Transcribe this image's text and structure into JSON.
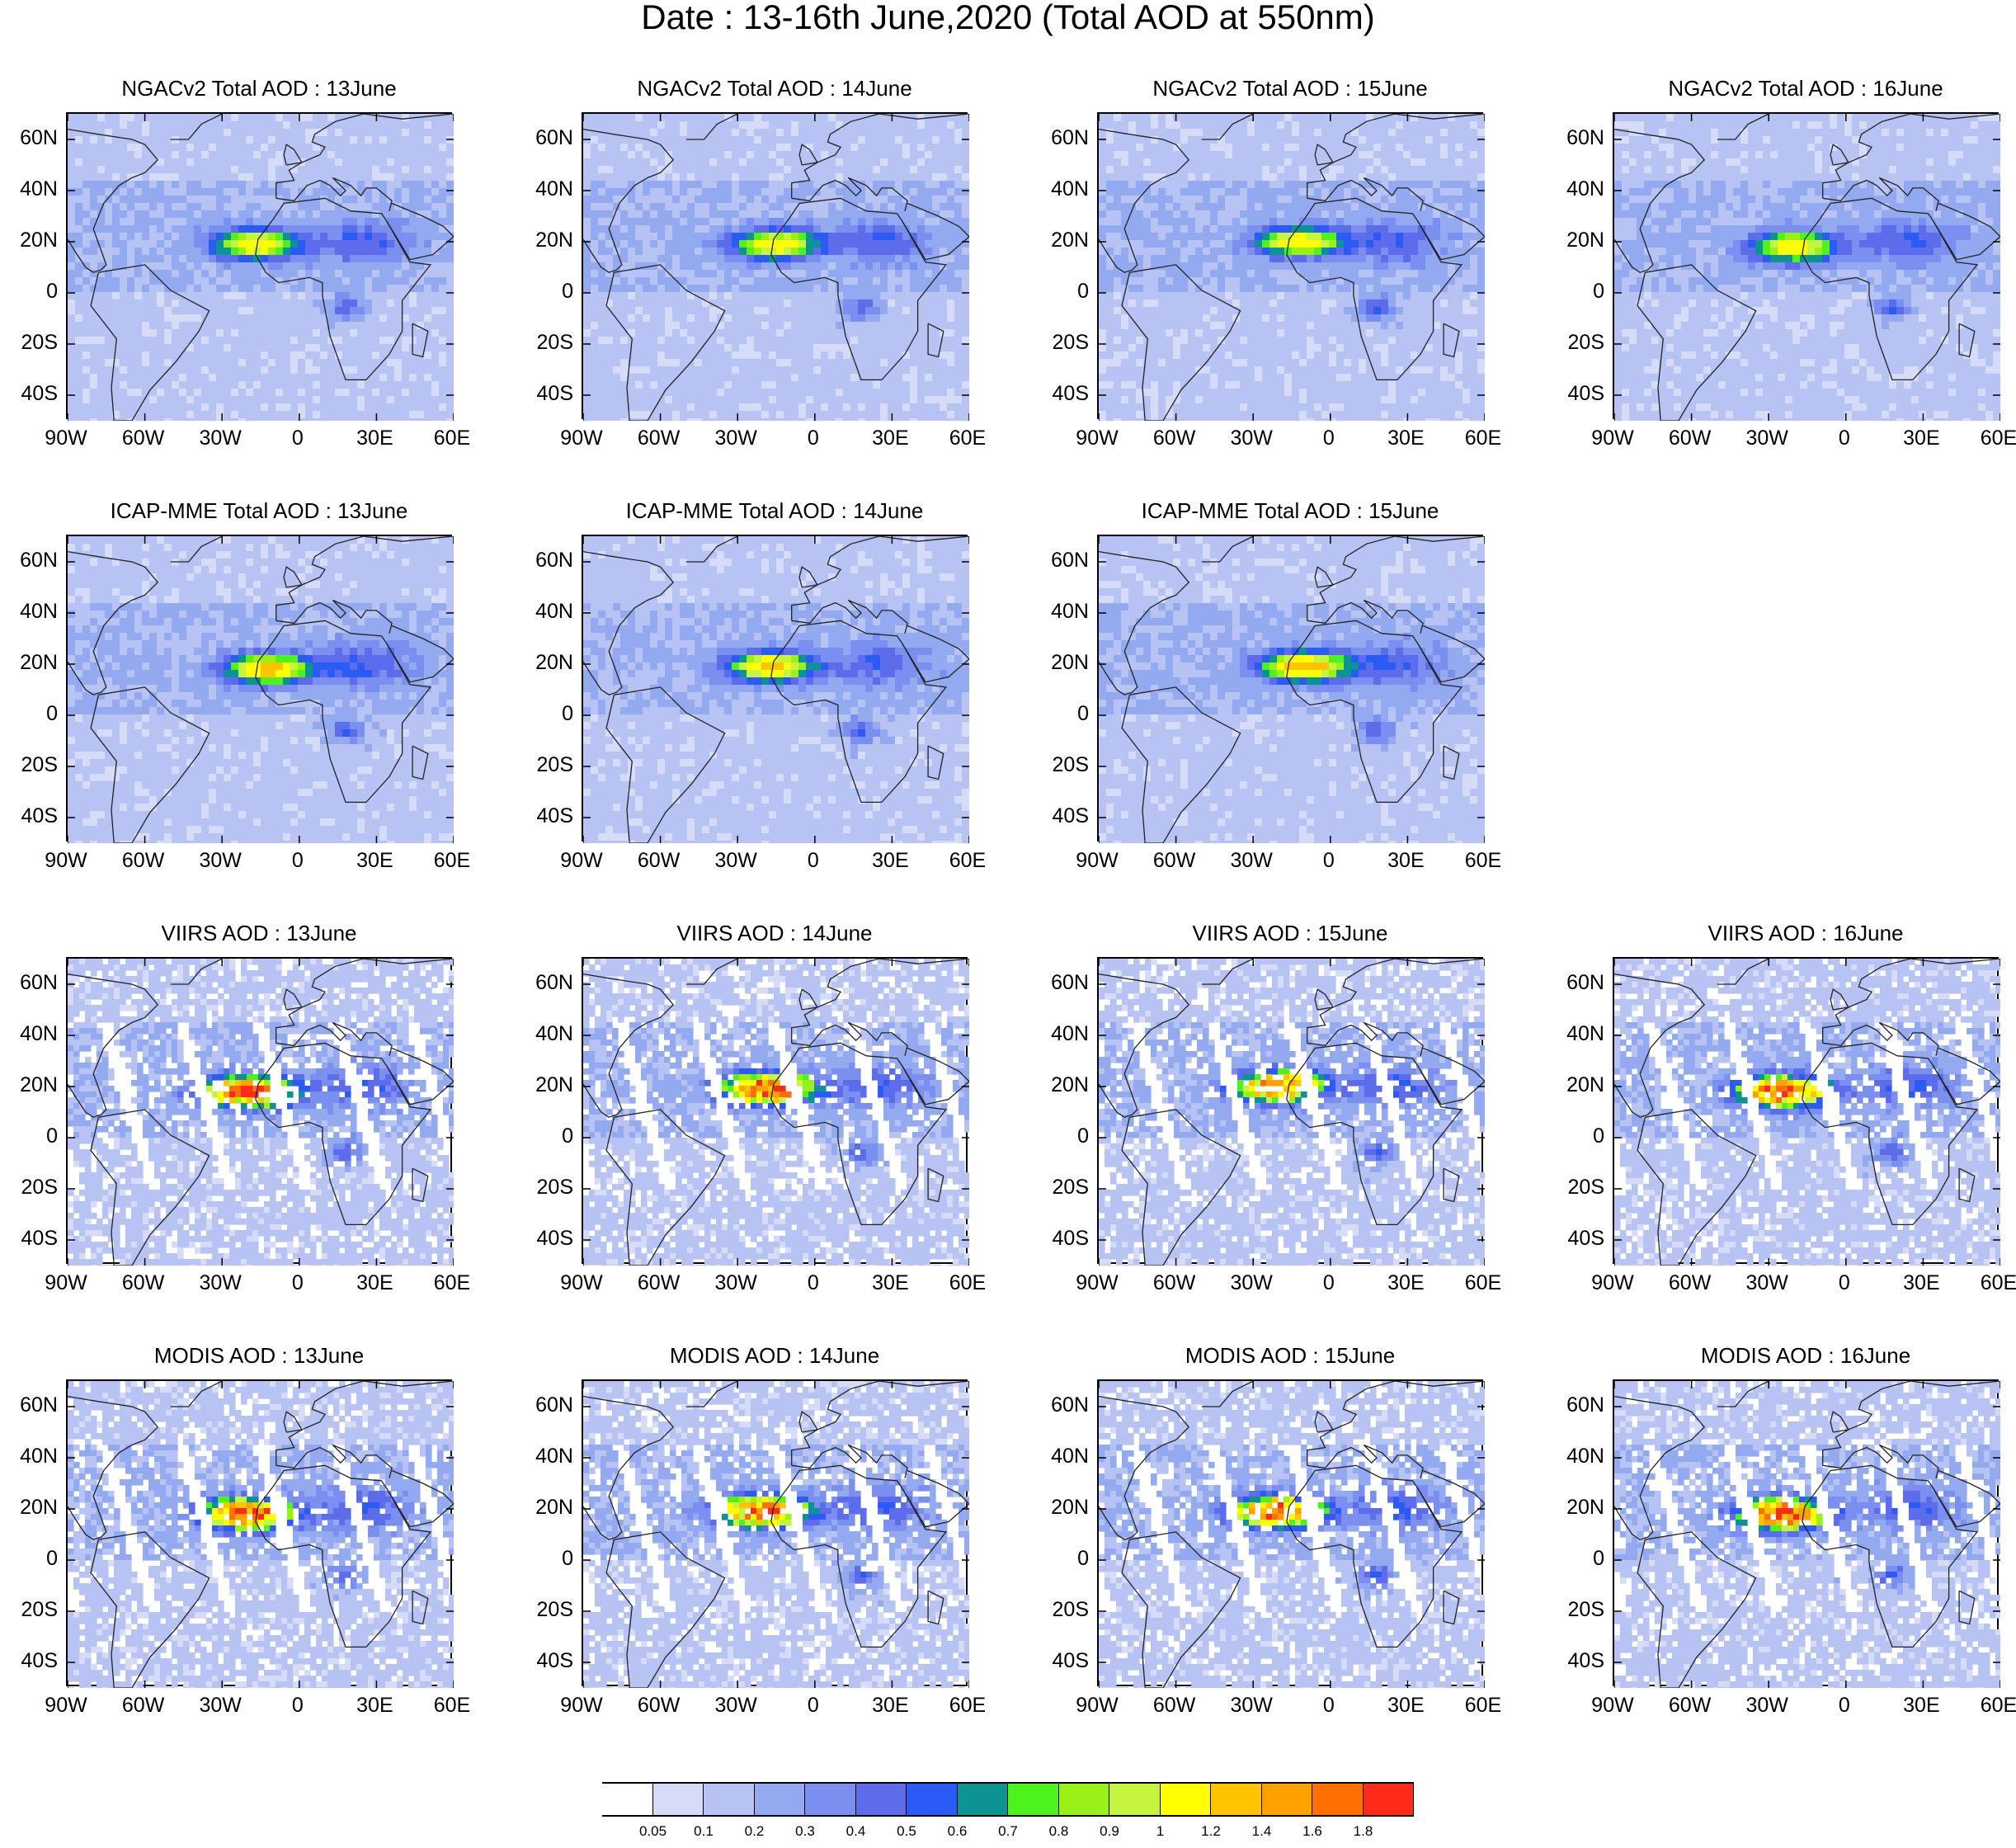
{
  "title": "Date : 13-16th June,2020 (Total AOD at 550nm)",
  "axes": {
    "lat_labels": [
      "60N",
      "40N",
      "20N",
      "0",
      "20S",
      "40S"
    ],
    "lon_labels": [
      "90W",
      "60W",
      "30W",
      "0",
      "30E",
      "60E"
    ],
    "lat_values": [
      60,
      40,
      20,
      0,
      -20,
      -40
    ],
    "lon_values": [
      -90,
      -60,
      -30,
      0,
      30,
      60
    ],
    "lon_range": [
      -90,
      60
    ],
    "lat_range": [
      -50,
      70
    ]
  },
  "rows": [
    {
      "panels": [
        {
          "title": "NGACv2 Total AOD : 13June",
          "kind": "model",
          "plume_lon": -17,
          "plume_lat": 19,
          "peak": 1.0
        },
        {
          "title": "NGACv2 Total AOD : 14June",
          "kind": "model",
          "plume_lon": -15,
          "plume_lat": 19,
          "peak": 1.0
        },
        {
          "title": "NGACv2 Total AOD : 15June",
          "kind": "model",
          "plume_lon": -12,
          "plume_lat": 20,
          "peak": 1.0
        },
        {
          "title": "NGACv2 Total AOD : 16June",
          "kind": "model",
          "plume_lon": -20,
          "plume_lat": 18,
          "peak": 1.0
        }
      ]
    },
    {
      "panels": [
        {
          "title": "ICAP-MME Total AOD : 13June",
          "kind": "model",
          "plume_lon": -12,
          "plume_lat": 18,
          "peak": 1.1
        },
        {
          "title": "ICAP-MME Total AOD : 14June",
          "kind": "model",
          "plume_lon": -17,
          "plume_lat": 19,
          "peak": 1.1
        },
        {
          "title": "ICAP-MME Total AOD : 15June",
          "kind": "model",
          "plume_lon": -10,
          "plume_lat": 19,
          "peak": 1.2
        },
        null
      ]
    },
    {
      "panels": [
        {
          "title": "VIIRS AOD : 13June",
          "kind": "sat",
          "plume_lon": -20,
          "plume_lat": 18,
          "peak": 1.8
        },
        {
          "title": "VIIRS AOD : 14June",
          "kind": "sat",
          "plume_lon": -18,
          "plume_lat": 19,
          "peak": 1.8
        },
        {
          "title": "VIIRS AOD : 15June",
          "kind": "sat",
          "plume_lon": -20,
          "plume_lat": 20,
          "peak": 1.6
        },
        {
          "title": "VIIRS AOD : 16June",
          "kind": "sat",
          "plume_lon": -25,
          "plume_lat": 18,
          "peak": 1.8
        }
      ]
    },
    {
      "panels": [
        {
          "title": "MODIS AOD : 13June",
          "kind": "sat",
          "plume_lon": -20,
          "plume_lat": 18,
          "peak": 1.8
        },
        {
          "title": "MODIS AOD : 14June",
          "kind": "sat",
          "plume_lon": -20,
          "plume_lat": 19,
          "peak": 1.8
        },
        {
          "title": "MODIS AOD : 15June",
          "kind": "sat",
          "plume_lon": -20,
          "plume_lat": 19,
          "peak": 1.8
        },
        {
          "title": "MODIS AOD : 16June",
          "kind": "sat",
          "plume_lon": -25,
          "plume_lat": 18,
          "peak": 1.8
        }
      ]
    }
  ],
  "colorbar": {
    "levels": [
      "0.05",
      "0.1",
      "0.2",
      "0.3",
      "0.4",
      "0.5",
      "0.6",
      "0.7",
      "0.8",
      "0.9",
      "1",
      "1.2",
      "1.4",
      "1.6",
      "1.8"
    ],
    "colors": [
      "#ffffff",
      "#d6dcf7",
      "#b6c3f3",
      "#94aaf0",
      "#7a8ff0",
      "#5c6cea",
      "#2b5bf5",
      "#0b9493",
      "#4ef21c",
      "#98f218",
      "#c6f540",
      "#ffff00",
      "#ffc400",
      "#ffa200",
      "#ff7000",
      "#ff2a1a"
    ]
  },
  "chart_data": [
    {
      "type": "heatmap",
      "title": "NGACv2 Total AOD : 13June",
      "variable": "Total AOD at 550nm",
      "xlim": [
        -90,
        60
      ],
      "ylim": [
        -50,
        70
      ],
      "max_value": 1.0
    },
    {
      "type": "heatmap",
      "title": "NGACv2 Total AOD : 14June",
      "variable": "Total AOD at 550nm",
      "xlim": [
        -90,
        60
      ],
      "ylim": [
        -50,
        70
      ],
      "max_value": 1.0
    },
    {
      "type": "heatmap",
      "title": "NGACv2 Total AOD : 15June",
      "variable": "Total AOD at 550nm",
      "xlim": [
        -90,
        60
      ],
      "ylim": [
        -50,
        70
      ],
      "max_value": 1.0
    },
    {
      "type": "heatmap",
      "title": "NGACv2 Total AOD : 16June",
      "variable": "Total AOD at 550nm",
      "xlim": [
        -90,
        60
      ],
      "ylim": [
        -50,
        70
      ],
      "max_value": 1.0
    },
    {
      "type": "heatmap",
      "title": "ICAP-MME Total AOD : 13June",
      "variable": "Total AOD at 550nm",
      "xlim": [
        -90,
        60
      ],
      "ylim": [
        -50,
        70
      ],
      "max_value": 1.1
    },
    {
      "type": "heatmap",
      "title": "ICAP-MME Total AOD : 14June",
      "variable": "Total AOD at 550nm",
      "xlim": [
        -90,
        60
      ],
      "ylim": [
        -50,
        70
      ],
      "max_value": 1.1
    },
    {
      "type": "heatmap",
      "title": "ICAP-MME Total AOD : 15June",
      "variable": "Total AOD at 550nm",
      "xlim": [
        -90,
        60
      ],
      "ylim": [
        -50,
        70
      ],
      "max_value": 1.2
    },
    {
      "type": "heatmap",
      "title": "VIIRS AOD : 13June",
      "variable": "AOD",
      "xlim": [
        -90,
        60
      ],
      "ylim": [
        -50,
        70
      ],
      "max_value": 1.8
    },
    {
      "type": "heatmap",
      "title": "VIIRS AOD : 14June",
      "variable": "AOD",
      "xlim": [
        -90,
        60
      ],
      "ylim": [
        -50,
        70
      ],
      "max_value": 1.8
    },
    {
      "type": "heatmap",
      "title": "VIIRS AOD : 15June",
      "variable": "AOD",
      "xlim": [
        -90,
        60
      ],
      "ylim": [
        -50,
        70
      ],
      "max_value": 1.6
    },
    {
      "type": "heatmap",
      "title": "VIIRS AOD : 16June",
      "variable": "AOD",
      "xlim": [
        -90,
        60
      ],
      "ylim": [
        -50,
        70
      ],
      "max_value": 1.8
    },
    {
      "type": "heatmap",
      "title": "MODIS AOD : 13June",
      "variable": "AOD",
      "xlim": [
        -90,
        60
      ],
      "ylim": [
        -50,
        70
      ],
      "max_value": 1.8
    },
    {
      "type": "heatmap",
      "title": "MODIS AOD : 14June",
      "variable": "AOD",
      "xlim": [
        -90,
        60
      ],
      "ylim": [
        -50,
        70
      ],
      "max_value": 1.8
    },
    {
      "type": "heatmap",
      "title": "MODIS AOD : 15June",
      "variable": "AOD",
      "xlim": [
        -90,
        60
      ],
      "ylim": [
        -50,
        70
      ],
      "max_value": 1.8
    },
    {
      "type": "heatmap",
      "title": "MODIS AOD : 16June",
      "variable": "AOD",
      "xlim": [
        -90,
        60
      ],
      "ylim": [
        -50,
        70
      ],
      "max_value": 1.8
    }
  ]
}
